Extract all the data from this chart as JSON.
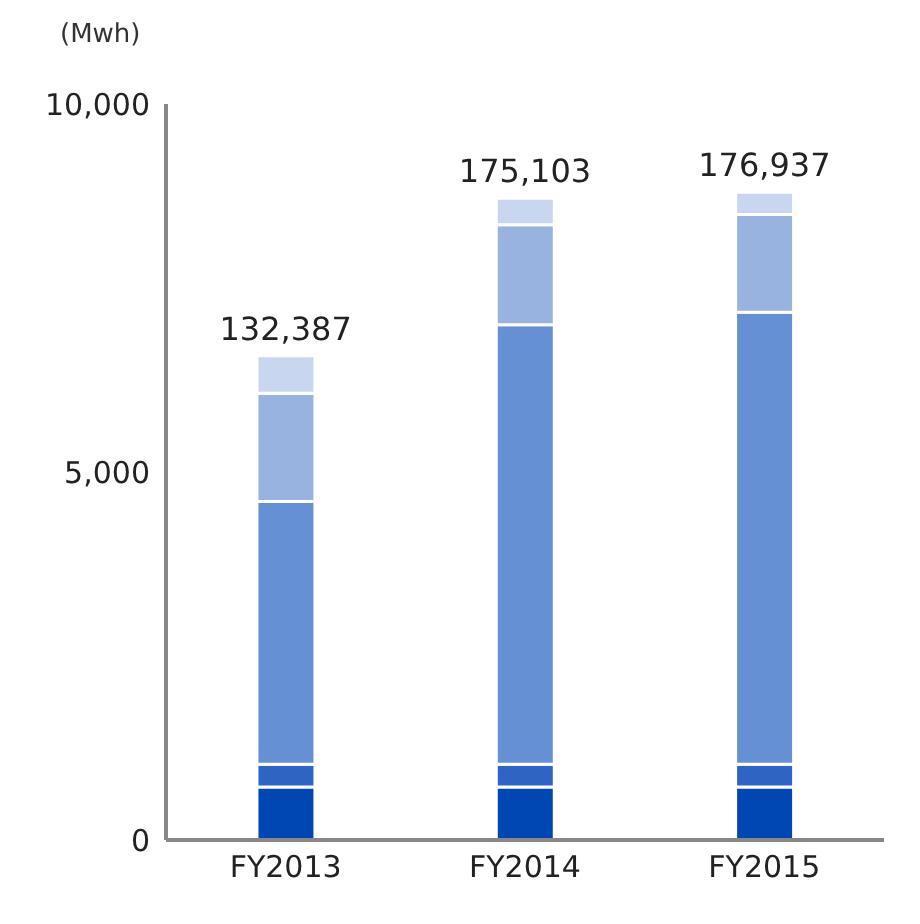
{
  "chart_data": {
    "type": "bar",
    "stacked": true,
    "ylabel": "(Mwh)",
    "categories": [
      "FY2013",
      "FY2014",
      "FY2015"
    ],
    "series": [
      {
        "color": "#0047b3",
        "values": [
          720,
          720,
          720
        ]
      },
      {
        "color": "#2f63c4",
        "values": [
          310,
          310,
          310
        ]
      },
      {
        "color": "#6690d4",
        "values": [
          3570,
          5970,
          6140
        ]
      },
      {
        "color": "#98b3e0",
        "values": [
          1470,
          1360,
          1330
        ]
      },
      {
        "color": "#c8d7ef",
        "values": [
          510,
          360,
          300
        ]
      }
    ],
    "annotations": [
      {
        "text": "132,387",
        "x": "FY2013",
        "y": 6580
      },
      {
        "text": "175,103",
        "x": "FY2014",
        "y": 8720
      },
      {
        "text": "176,937",
        "x": "FY2015",
        "y": 8800
      }
    ],
    "ylim": [
      0,
      10000
    ],
    "yticks": [
      {
        "value": 0,
        "label": "0"
      },
      {
        "value": 5000,
        "label": "5,000"
      },
      {
        "value": 10000,
        "label": "10,000"
      }
    ],
    "grid": false,
    "legend": false
  }
}
